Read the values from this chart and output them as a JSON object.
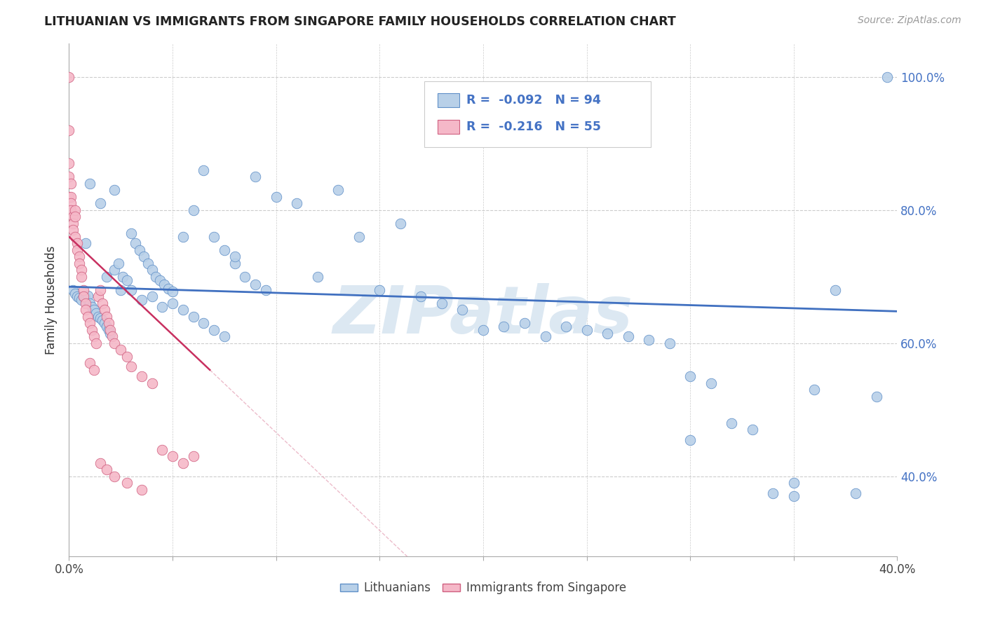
{
  "title": "LITHUANIAN VS IMMIGRANTS FROM SINGAPORE FAMILY HOUSEHOLDS CORRELATION CHART",
  "source": "Source: ZipAtlas.com",
  "ylabel": "Family Households",
  "x_min": 0.0,
  "x_max": 0.4,
  "y_min": 0.28,
  "y_max": 1.05,
  "x_ticks": [
    0.0,
    0.05,
    0.1,
    0.15,
    0.2,
    0.25,
    0.3,
    0.35,
    0.4
  ],
  "x_tick_labels": [
    "0.0%",
    "",
    "",
    "",
    "",
    "",
    "",
    "",
    "40.0%"
  ],
  "y_ticks_right": [
    0.4,
    0.6,
    0.8,
    1.0
  ],
  "y_tick_labels_right": [
    "40.0%",
    "60.0%",
    "80.0%",
    "100.0%"
  ],
  "blue_R": -0.092,
  "blue_N": 94,
  "pink_R": -0.216,
  "pink_N": 55,
  "blue_fill_color": "#b8d0e8",
  "pink_fill_color": "#f5b8c8",
  "blue_edge_color": "#6090c8",
  "pink_edge_color": "#d06080",
  "blue_line_color": "#4070c0",
  "pink_line_color": "#c83060",
  "pink_dash_color": "#e090a8",
  "watermark_text": "ZIPatlas",
  "watermark_color": "#dce8f2",
  "legend_text_color": "#4472c4",
  "legend_label_blue": "Lithuanians",
  "legend_label_pink": "Immigrants from Singapore",
  "blue_x": [
    0.002,
    0.003,
    0.004,
    0.005,
    0.006,
    0.007,
    0.008,
    0.009,
    0.01,
    0.011,
    0.012,
    0.013,
    0.014,
    0.015,
    0.016,
    0.017,
    0.018,
    0.019,
    0.02,
    0.022,
    0.024,
    0.026,
    0.028,
    0.03,
    0.032,
    0.034,
    0.036,
    0.038,
    0.04,
    0.042,
    0.044,
    0.046,
    0.048,
    0.05,
    0.055,
    0.06,
    0.065,
    0.07,
    0.075,
    0.08,
    0.085,
    0.09,
    0.095,
    0.1,
    0.11,
    0.12,
    0.13,
    0.14,
    0.15,
    0.16,
    0.17,
    0.18,
    0.19,
    0.2,
    0.21,
    0.22,
    0.23,
    0.24,
    0.25,
    0.26,
    0.27,
    0.28,
    0.29,
    0.3,
    0.31,
    0.32,
    0.33,
    0.34,
    0.35,
    0.36,
    0.37,
    0.38,
    0.39,
    0.395,
    0.008,
    0.01,
    0.015,
    0.018,
    0.022,
    0.025,
    0.03,
    0.035,
    0.04,
    0.045,
    0.05,
    0.055,
    0.06,
    0.065,
    0.07,
    0.075,
    0.08,
    0.09,
    0.3,
    0.35
  ],
  "blue_y": [
    0.68,
    0.675,
    0.67,
    0.668,
    0.665,
    0.67,
    0.668,
    0.672,
    0.66,
    0.655,
    0.65,
    0.645,
    0.64,
    0.638,
    0.635,
    0.63,
    0.625,
    0.62,
    0.615,
    0.71,
    0.72,
    0.7,
    0.695,
    0.765,
    0.75,
    0.74,
    0.73,
    0.72,
    0.71,
    0.7,
    0.695,
    0.688,
    0.682,
    0.678,
    0.76,
    0.8,
    0.86,
    0.76,
    0.74,
    0.72,
    0.7,
    0.688,
    0.68,
    0.82,
    0.81,
    0.7,
    0.83,
    0.76,
    0.68,
    0.78,
    0.67,
    0.66,
    0.65,
    0.62,
    0.625,
    0.63,
    0.61,
    0.625,
    0.62,
    0.615,
    0.61,
    0.605,
    0.6,
    0.55,
    0.54,
    0.48,
    0.47,
    0.375,
    0.37,
    0.53,
    0.68,
    0.375,
    0.52,
    1.0,
    0.75,
    0.84,
    0.81,
    0.7,
    0.83,
    0.68,
    0.68,
    0.665,
    0.67,
    0.655,
    0.66,
    0.65,
    0.64,
    0.63,
    0.62,
    0.61,
    0.73,
    0.85,
    0.455,
    0.39
  ],
  "pink_x": [
    0.0,
    0.0,
    0.0,
    0.0,
    0.0,
    0.001,
    0.001,
    0.001,
    0.001,
    0.002,
    0.002,
    0.002,
    0.003,
    0.003,
    0.003,
    0.004,
    0.004,
    0.005,
    0.005,
    0.006,
    0.006,
    0.007,
    0.007,
    0.008,
    0.008,
    0.009,
    0.01,
    0.011,
    0.012,
    0.013,
    0.014,
    0.015,
    0.016,
    0.017,
    0.018,
    0.019,
    0.02,
    0.021,
    0.022,
    0.025,
    0.028,
    0.03,
    0.035,
    0.04,
    0.045,
    0.05,
    0.055,
    0.06,
    0.01,
    0.012,
    0.015,
    0.018,
    0.022,
    0.028,
    0.035
  ],
  "pink_y": [
    1.0,
    0.92,
    0.87,
    0.85,
    0.82,
    0.84,
    0.82,
    0.81,
    0.8,
    0.79,
    0.78,
    0.77,
    0.8,
    0.79,
    0.76,
    0.75,
    0.74,
    0.73,
    0.72,
    0.71,
    0.7,
    0.68,
    0.67,
    0.66,
    0.65,
    0.64,
    0.63,
    0.62,
    0.61,
    0.6,
    0.67,
    0.68,
    0.66,
    0.65,
    0.64,
    0.63,
    0.62,
    0.61,
    0.6,
    0.59,
    0.58,
    0.565,
    0.55,
    0.54,
    0.44,
    0.43,
    0.42,
    0.43,
    0.57,
    0.56,
    0.42,
    0.41,
    0.4,
    0.39,
    0.38
  ],
  "blue_trend_x0": 0.0,
  "blue_trend_x1": 0.4,
  "blue_trend_y0": 0.685,
  "blue_trend_y1": 0.648,
  "pink_trend_x0": 0.0,
  "pink_trend_x1": 0.068,
  "pink_trend_y0": 0.76,
  "pink_trend_y1": 0.56
}
